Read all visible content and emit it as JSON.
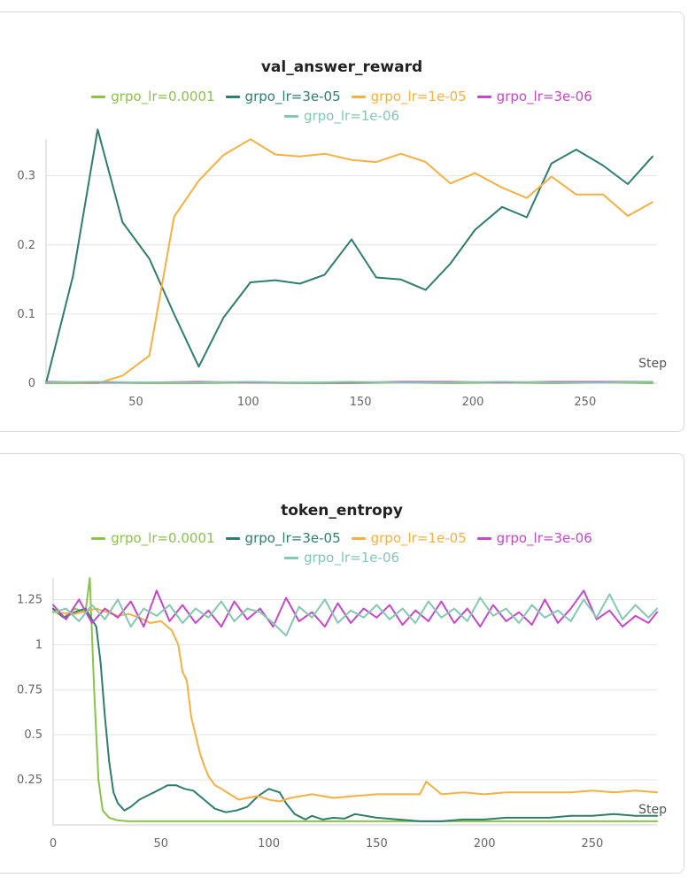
{
  "legend": [
    {
      "name": "grpo_lr=0.0001",
      "color": "#8bc34a"
    },
    {
      "name": "grpo_lr=3e-05",
      "color": "#2e7d6e"
    },
    {
      "name": "grpo_lr=1e-05",
      "color": "#f5b041"
    },
    {
      "name": "grpo_lr=3e-06",
      "color": "#c548c9"
    },
    {
      "name": "grpo_lr=1e-06",
      "color": "#84c7b3"
    }
  ],
  "chart_data": [
    {
      "type": "line",
      "title": "val_answer_reward",
      "xlabel": "Step",
      "ylabel": "",
      "xlim": [
        10,
        282
      ],
      "ylim": [
        0,
        0.37
      ],
      "xticks": [
        50,
        100,
        150,
        200,
        250
      ],
      "yticks": [
        0,
        0.1,
        0.2,
        0.3
      ],
      "ytick_labels": [
        "0",
        "0.1",
        "0.2",
        "0.3"
      ],
      "grid": "horizontal",
      "legend_position": "top-center",
      "series": [
        {
          "name": "grpo_lr=3e-05",
          "color": "#2e7d6e",
          "x": [
            10,
            22,
            33,
            44,
            56,
            67,
            78,
            89,
            101,
            112,
            123,
            134,
            146,
            157,
            168,
            179,
            190,
            201,
            213,
            224,
            235,
            246,
            258,
            269,
            280
          ],
          "y": [
            0,
            0.155,
            0.367,
            0.233,
            0.18,
            0.1,
            0.024,
            0.095,
            0.146,
            0.149,
            0.144,
            0.157,
            0.208,
            0.153,
            0.15,
            0.135,
            0.173,
            0.222,
            0.255,
            0.24,
            0.318,
            0.338,
            0.315,
            0.288,
            0.328
          ]
        },
        {
          "name": "grpo_lr=1e-05",
          "color": "#f5b041",
          "x": [
            10,
            22,
            33,
            44,
            56,
            67,
            78,
            89,
            101,
            112,
            123,
            134,
            146,
            157,
            168,
            179,
            190,
            201,
            213,
            224,
            235,
            246,
            258,
            269,
            280
          ],
          "y": [
            0,
            0,
            0,
            0.011,
            0.04,
            0.241,
            0.293,
            0.33,
            0.353,
            0.331,
            0.328,
            0.332,
            0.323,
            0.32,
            0.332,
            0.32,
            0.289,
            0.304,
            0.283,
            0.268,
            0.299,
            0.273,
            0.273,
            0.242,
            0.262
          ]
        },
        {
          "name": "grpo_lr=0.0001",
          "color": "#8bc34a",
          "x": [
            10,
            33,
            56,
            78,
            101,
            123,
            146,
            168,
            190,
            213,
            235,
            258,
            280
          ],
          "y": [
            0,
            0.001,
            0,
            0,
            0.001,
            0,
            0,
            0.001,
            0,
            0.001,
            0,
            0.001,
            0
          ]
        },
        {
          "name": "grpo_lr=3e-06",
          "color": "#c548c9",
          "x": [
            10,
            33,
            56,
            78,
            101,
            123,
            146,
            168,
            190,
            213,
            235,
            258,
            280
          ],
          "y": [
            0.002,
            0.001,
            0.001,
            0.002,
            0.001,
            0.001,
            0.001,
            0.002,
            0.002,
            0.001,
            0.002,
            0.002,
            0.002
          ]
        },
        {
          "name": "grpo_lr=1e-06",
          "color": "#84c7b3",
          "x": [
            10,
            33,
            56,
            78,
            101,
            123,
            146,
            168,
            190,
            213,
            235,
            258,
            280
          ],
          "y": [
            0.001,
            0.002,
            0.001,
            0.001,
            0.002,
            0.001,
            0.002,
            0.001,
            0.001,
            0.002,
            0.001,
            0.001,
            0.002
          ]
        }
      ]
    },
    {
      "type": "line",
      "title": "token_entropy",
      "xlabel": "Step",
      "ylabel": "",
      "xlim": [
        0,
        280
      ],
      "ylim": [
        0,
        1.37
      ],
      "xticks": [
        0,
        50,
        100,
        150,
        200,
        250
      ],
      "yticks": [
        0.25,
        0.5,
        0.75,
        1,
        1.25
      ],
      "ytick_labels": [
        "0.25",
        "0.5",
        "0.75",
        "1",
        "1.25"
      ],
      "grid": "horizontal",
      "legend_position": "top-center",
      "series": [
        {
          "name": "grpo_lr=0.0001",
          "color": "#8bc34a",
          "x": [
            0,
            5,
            10,
            15,
            17,
            19,
            21,
            23,
            26,
            30,
            35,
            40,
            60,
            80,
            100,
            120,
            140,
            160,
            180,
            200,
            220,
            240,
            260,
            280
          ],
          "y": [
            1.19,
            1.15,
            1.2,
            1.18,
            1.37,
            0.75,
            0.25,
            0.08,
            0.04,
            0.025,
            0.02,
            0.02,
            0.02,
            0.02,
            0.02,
            0.02,
            0.02,
            0.02,
            0.02,
            0.02,
            0.02,
            0.02,
            0.02,
            0.02
          ]
        },
        {
          "name": "grpo_lr=3e-05",
          "color": "#2e7d6e",
          "x": [
            0,
            5,
            10,
            15,
            20,
            22,
            24,
            26,
            28,
            30,
            33,
            36,
            40,
            45,
            50,
            53,
            57,
            61,
            65,
            70,
            75,
            80,
            85,
            90,
            95,
            100,
            105,
            108,
            112,
            117,
            120,
            125,
            130,
            135,
            140,
            150,
            160,
            170,
            180,
            190,
            200,
            210,
            220,
            230,
            240,
            250,
            260,
            270,
            280
          ],
          "y": [
            1.2,
            1.15,
            1.18,
            1.2,
            1.1,
            0.9,
            0.6,
            0.35,
            0.18,
            0.12,
            0.08,
            0.1,
            0.14,
            0.17,
            0.2,
            0.22,
            0.22,
            0.2,
            0.19,
            0.14,
            0.09,
            0.07,
            0.08,
            0.1,
            0.16,
            0.2,
            0.18,
            0.12,
            0.06,
            0.03,
            0.05,
            0.03,
            0.04,
            0.035,
            0.06,
            0.04,
            0.03,
            0.02,
            0.02,
            0.03,
            0.03,
            0.04,
            0.04,
            0.04,
            0.05,
            0.05,
            0.06,
            0.05,
            0.05
          ]
        },
        {
          "name": "grpo_lr=1e-05",
          "color": "#f5b041",
          "x": [
            0,
            10,
            20,
            30,
            35,
            40,
            45,
            50,
            55,
            58,
            60,
            62,
            64,
            66,
            68,
            70,
            72,
            75,
            78,
            82,
            86,
            90,
            95,
            100,
            105,
            110,
            120,
            130,
            140,
            150,
            160,
            170,
            173,
            180,
            190,
            200,
            210,
            220,
            230,
            240,
            250,
            260,
            270,
            280
          ],
          "y": [
            1.18,
            1.17,
            1.2,
            1.16,
            1.17,
            1.15,
            1.12,
            1.13,
            1.08,
            1.0,
            0.85,
            0.8,
            0.6,
            0.5,
            0.4,
            0.33,
            0.27,
            0.22,
            0.2,
            0.17,
            0.14,
            0.15,
            0.16,
            0.14,
            0.13,
            0.15,
            0.17,
            0.15,
            0.16,
            0.17,
            0.17,
            0.17,
            0.24,
            0.17,
            0.18,
            0.17,
            0.18,
            0.18,
            0.18,
            0.18,
            0.19,
            0.18,
            0.19,
            0.18
          ]
        },
        {
          "name": "grpo_lr=3e-06",
          "color": "#c548c9",
          "x": [
            0,
            6,
            12,
            18,
            24,
            30,
            36,
            42,
            48,
            54,
            60,
            66,
            72,
            78,
            84,
            90,
            96,
            102,
            108,
            114,
            120,
            126,
            132,
            138,
            144,
            150,
            156,
            162,
            168,
            174,
            180,
            186,
            192,
            198,
            204,
            210,
            216,
            222,
            228,
            234,
            240,
            246,
            252,
            258,
            264,
            270,
            276,
            280
          ],
          "y": [
            1.22,
            1.14,
            1.25,
            1.12,
            1.2,
            1.15,
            1.24,
            1.1,
            1.3,
            1.13,
            1.22,
            1.12,
            1.19,
            1.1,
            1.24,
            1.14,
            1.2,
            1.1,
            1.26,
            1.13,
            1.18,
            1.1,
            1.23,
            1.12,
            1.2,
            1.15,
            1.22,
            1.11,
            1.19,
            1.13,
            1.24,
            1.12,
            1.2,
            1.1,
            1.22,
            1.13,
            1.18,
            1.11,
            1.25,
            1.12,
            1.2,
            1.3,
            1.14,
            1.19,
            1.1,
            1.16,
            1.12,
            1.18
          ]
        },
        {
          "name": "grpo_lr=1e-06",
          "color": "#84c7b3",
          "x": [
            0,
            6,
            12,
            18,
            24,
            30,
            36,
            42,
            48,
            54,
            60,
            66,
            72,
            78,
            84,
            90,
            96,
            102,
            108,
            114,
            120,
            126,
            132,
            138,
            144,
            150,
            156,
            162,
            168,
            174,
            180,
            186,
            192,
            198,
            204,
            210,
            216,
            222,
            228,
            234,
            240,
            246,
            252,
            258,
            264,
            270,
            276,
            280
          ],
          "y": [
            1.18,
            1.2,
            1.13,
            1.22,
            1.14,
            1.25,
            1.1,
            1.2,
            1.16,
            1.22,
            1.12,
            1.2,
            1.15,
            1.24,
            1.13,
            1.2,
            1.18,
            1.12,
            1.05,
            1.21,
            1.15,
            1.25,
            1.12,
            1.19,
            1.15,
            1.22,
            1.14,
            1.2,
            1.12,
            1.24,
            1.15,
            1.2,
            1.13,
            1.26,
            1.16,
            1.2,
            1.12,
            1.22,
            1.15,
            1.19,
            1.13,
            1.25,
            1.15,
            1.28,
            1.14,
            1.22,
            1.15,
            1.2
          ]
        }
      ]
    }
  ]
}
